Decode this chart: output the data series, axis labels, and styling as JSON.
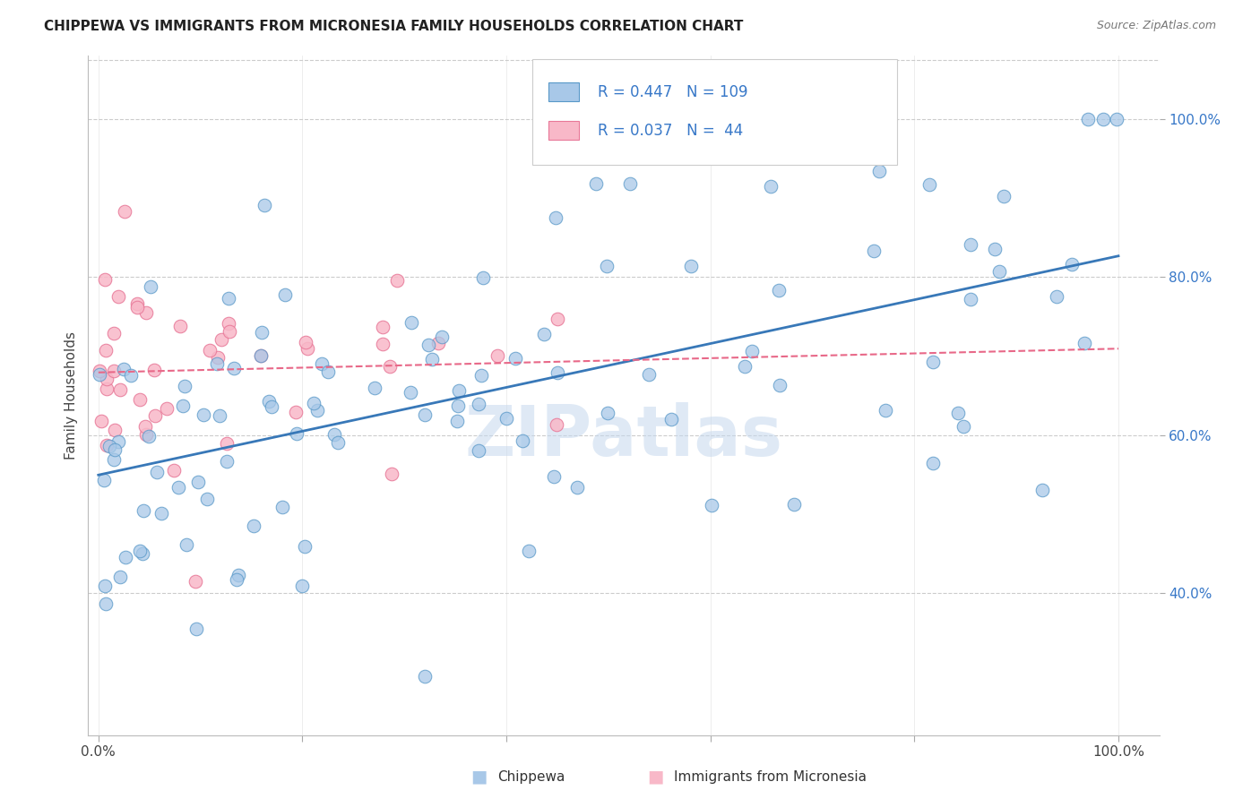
{
  "title": "CHIPPEWA VS IMMIGRANTS FROM MICRONESIA FAMILY HOUSEHOLDS CORRELATION CHART",
  "source": "Source: ZipAtlas.com",
  "ylabel": "Family Households",
  "ylabel_right_ticks": [
    "40.0%",
    "60.0%",
    "80.0%",
    "100.0%"
  ],
  "ylabel_right_values": [
    0.4,
    0.6,
    0.8,
    1.0
  ],
  "legend_label1": "Chippewa",
  "legend_label2": "Immigrants from Micronesia",
  "legend_R1": "0.447",
  "legend_N1": "109",
  "legend_R2": "0.037",
  "legend_N2": " 44",
  "color_blue_fill": "#a8c8e8",
  "color_blue_edge": "#5898c8",
  "color_pink_fill": "#f8b8c8",
  "color_pink_edge": "#e87898",
  "color_blue_line": "#3878b8",
  "color_pink_line": "#e86888",
  "color_text_blue": "#3878c8",
  "background": "#ffffff",
  "watermark": "ZIPatlas",
  "grid_color": "#cccccc"
}
